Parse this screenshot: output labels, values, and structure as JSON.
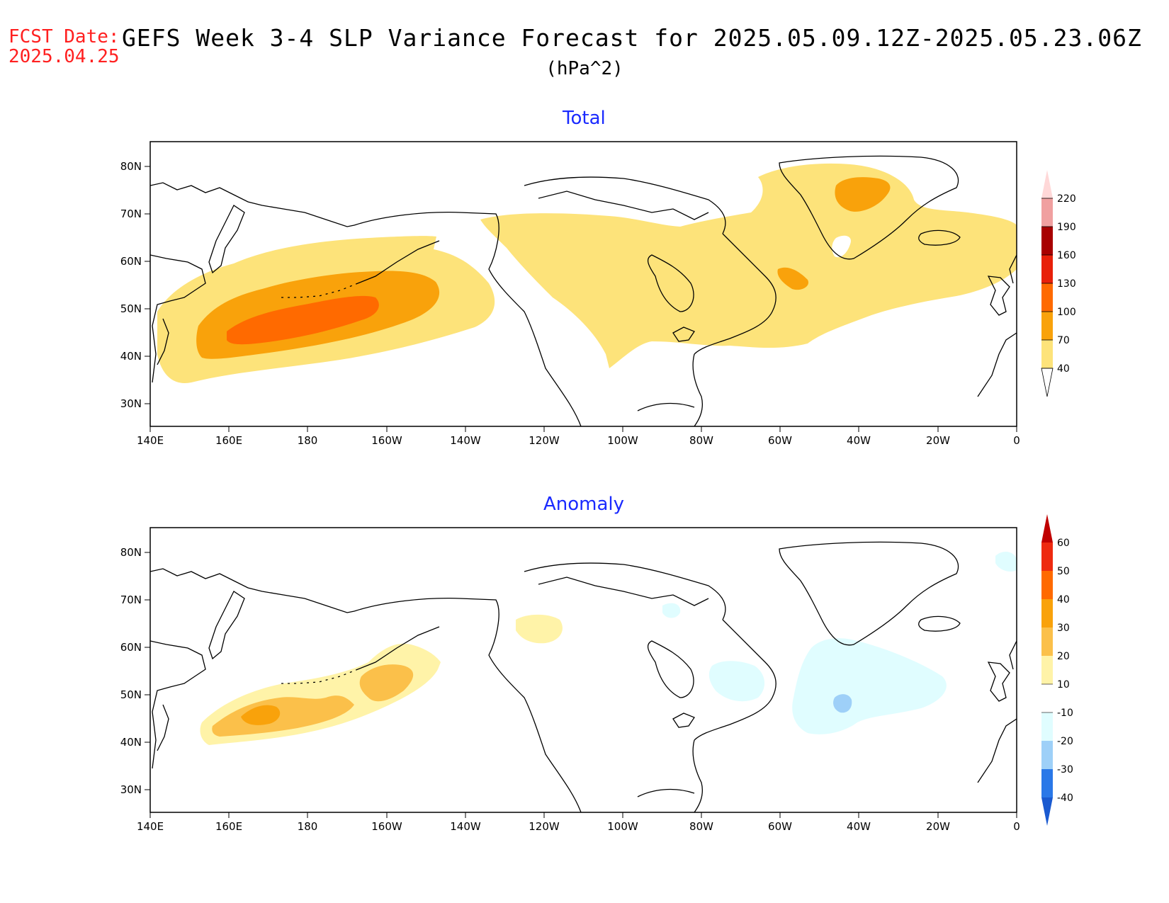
{
  "header": {
    "fcst_label": "FCST Date:",
    "fcst_date": "2025.04.25",
    "title": "GEFS Week 3-4 SLP Variance Forecast for 2025.05.09.12Z-2025.05.23.06Z",
    "units": "(hPa^2)"
  },
  "panels": [
    {
      "title": "Total",
      "lat_labels": [
        "80N",
        "70N",
        "60N",
        "50N",
        "40N",
        "30N"
      ],
      "lon_labels": [
        "140E",
        "160E",
        "180",
        "160W",
        "140W",
        "120W",
        "100W",
        "80W",
        "60W",
        "40W",
        "20W",
        "0"
      ],
      "colorbar": {
        "levels": [
          "40",
          "70",
          "100",
          "130",
          "160",
          "190",
          "220"
        ],
        "colors": [
          "#fde37a",
          "#f9a20b",
          "#ff6a00",
          "#e8200a",
          "#a80000",
          "#f0a0a0",
          "#ffd8d8"
        ]
      }
    },
    {
      "title": "Anomaly",
      "lat_labels": [
        "80N",
        "70N",
        "60N",
        "50N",
        "40N",
        "30N"
      ],
      "lon_labels": [
        "140E",
        "160E",
        "180",
        "160W",
        "140W",
        "120W",
        "100W",
        "80W",
        "60W",
        "40W",
        "20W",
        "0"
      ],
      "colorbar": {
        "levels": [
          "60",
          "50",
          "40",
          "30",
          "20",
          "10",
          "-10",
          "-20",
          "-30",
          "-40"
        ],
        "colors": [
          "#c00000",
          "#ee2a10",
          "#ff6a00",
          "#f9a20b",
          "#fbc04a",
          "#fff3a8",
          "#ffffff",
          "#e0fdff",
          "#9ed0f8",
          "#5aaaf0",
          "#2a78e8",
          "#1a5ad0"
        ]
      }
    }
  ],
  "chart_data": {
    "type": "map",
    "projection": "cylindrical",
    "lon_range": [
      "140E",
      "0"
    ],
    "lat_range": [
      25,
      85
    ],
    "total_shading_levels_hPa2": [
      40,
      70,
      100,
      130,
      160,
      190,
      220
    ],
    "anomaly_shading_levels_hPa2": [
      -40,
      -30,
      -20,
      -10,
      10,
      20,
      30,
      40,
      50,
      60
    ]
  }
}
